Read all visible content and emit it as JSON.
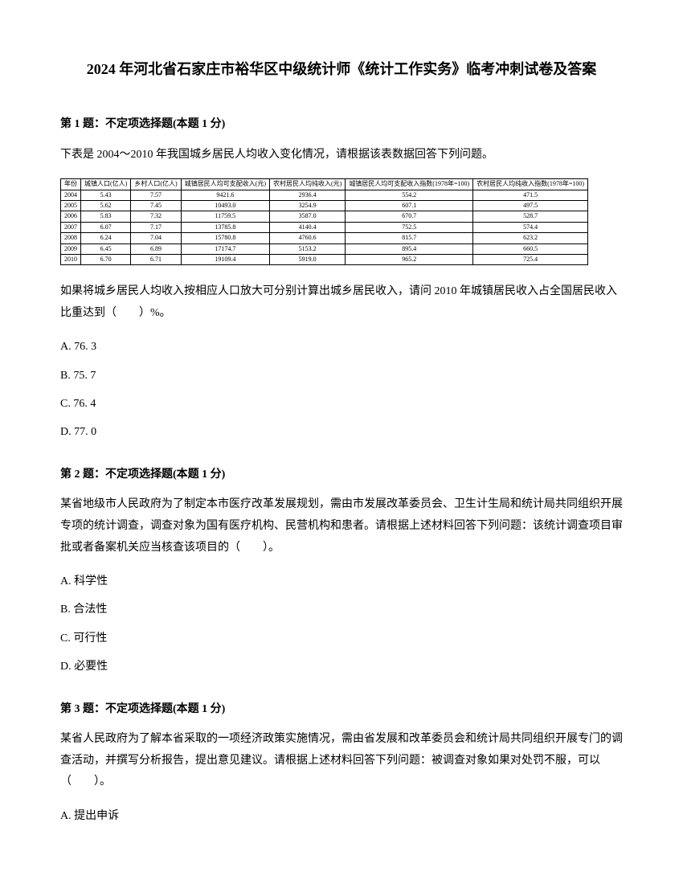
{
  "title": "2024 年河北省石家庄市裕华区中级统计师《统计工作实务》临考冲刺试卷及答案",
  "q1": {
    "header": "第 1 题：不定项选择题(本题 1 分)",
    "intro": "下表是 2004～2010 年我国城乡居民人均收入变化情况，请根据该表数据回答下列问题。",
    "table": {
      "headers": [
        "年份",
        "城镇人口(亿人)",
        "乡村人口(亿人)",
        "城镇居民人均可支配收入(元)",
        "农村居民人均纯收入(元)",
        "城镇居民人均可支配收入指数(1978年=100)",
        "农村居民人均纯收入指数(1978年=100)"
      ],
      "rows": [
        [
          "2004",
          "5.43",
          "7.57",
          "9421.6",
          "2936.4",
          "554.2",
          "471.5"
        ],
        [
          "2005",
          "5.62",
          "7.45",
          "10493.0",
          "3254.9",
          "607.1",
          "497.5"
        ],
        [
          "2006",
          "5.83",
          "7.32",
          "11759.5",
          "3587.0",
          "670.7",
          "528.7"
        ],
        [
          "2007",
          "6.07",
          "7.17",
          "13785.8",
          "4140.4",
          "752.5",
          "574.4"
        ],
        [
          "2008",
          "6.24",
          "7.04",
          "15780.8",
          "4760.6",
          "815.7",
          "623.2"
        ],
        [
          "2009",
          "6.45",
          "6.89",
          "17174.7",
          "5153.2",
          "895.4",
          "660.5"
        ],
        [
          "2010",
          "6.70",
          "6.71",
          "19109.4",
          "5919.0",
          "965.2",
          "725.4"
        ]
      ]
    },
    "question": "如果将城乡居民人均收入按相应人口放大可分别计算出城乡居民收入，请问 2010 年城镇居民收入占全国居民收入比重达到（　　）%。",
    "options": {
      "a": "A. 76. 3",
      "b": "B. 75. 7",
      "c": "C. 76. 4",
      "d": "D. 77. 0"
    }
  },
  "q2": {
    "header": "第 2 题：不定项选择题(本题 1 分)",
    "question": "某省地级市人民政府为了制定本市医疗改革发展规划，需由市发展改革委员会、卫生计生局和统计局共同组织开展专项的统计调查，调查对象为国有医疗机构、民营机构和患者。请根据上述材料回答下列问题：该统计调查项目审批或者备案机关应当核查该项目的（　　）。",
    "options": {
      "a": "A. 科学性",
      "b": "B. 合法性",
      "c": "C. 可行性",
      "d": "D. 必要性"
    }
  },
  "q3": {
    "header": "第 3 题：不定项选择题(本题 1 分)",
    "question": "某省人民政府为了解本省采取的一项经济政策实施情况，需由省发展和改革委员会和统计局共同组织开展专门的调查活动，并撰写分析报告，提出意见建议。请根据上述材料回答下列问题：被调查对象如果对处罚不服，可以（　　）。",
    "options": {
      "a": "A. 提出申诉"
    }
  }
}
